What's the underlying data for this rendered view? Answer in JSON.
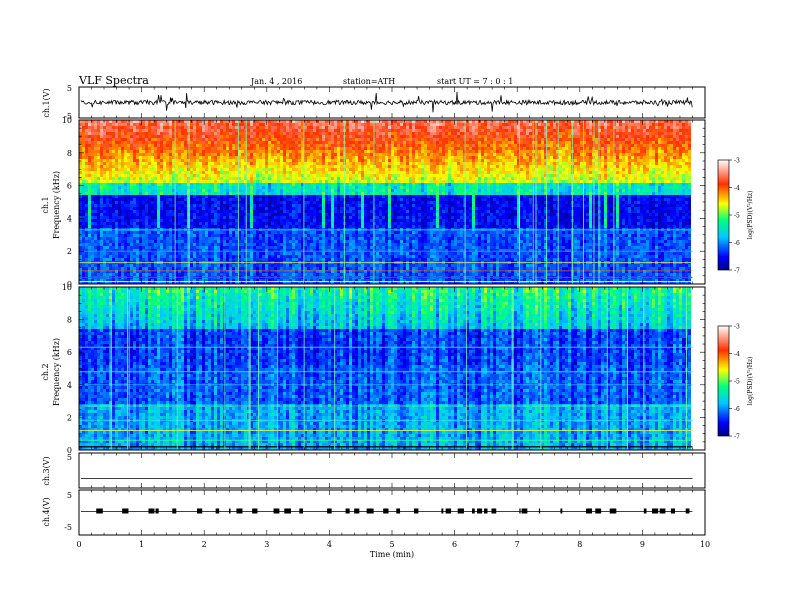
{
  "header": {
    "title": "VLF Spectra",
    "date": "Jan. 4 , 2016",
    "station": "station=ATH",
    "start": "start UT = 7 : 0 : 1"
  },
  "chart_data": [
    {
      "type": "line",
      "panel": "ch1-waveform",
      "ylabel": "ch.1(V)",
      "ylim": [
        -5,
        5
      ],
      "yticks": [
        "5",
        "-5"
      ],
      "xlim": [
        0,
        10
      ],
      "level": 0,
      "x_end": 9.8
    },
    {
      "type": "heatmap",
      "panel": "ch1-spectrogram",
      "ylabel": "ch.1",
      "ylabel2": "Frequency (kHz)",
      "ylim": [
        0,
        10
      ],
      "yticks": [
        "0",
        "2",
        "4",
        "6",
        "8",
        "10"
      ],
      "xlim": [
        0,
        10
      ],
      "x_end": 9.8,
      "colorbar": {
        "label": "log(PSD)(V²/Hz)",
        "ticks": [
          "-3",
          "-4",
          "-5",
          "-6",
          "-7"
        ],
        "range": [
          -7,
          -3
        ]
      }
    },
    {
      "type": "heatmap",
      "panel": "ch2-spectrogram",
      "ylabel": "ch.2",
      "ylabel2": "Frequency (kHz)",
      "ylim": [
        0,
        10
      ],
      "yticks": [
        "0",
        "2",
        "4",
        "6",
        "8",
        "10"
      ],
      "xlim": [
        0,
        10
      ],
      "x_end": 9.8,
      "colorbar": {
        "label": "log(PSD)(V²/Hz)",
        "ticks": [
          "-3",
          "-4",
          "-5",
          "-6",
          "-7"
        ],
        "range": [
          -7,
          -3
        ]
      }
    },
    {
      "type": "line",
      "panel": "ch3-waveform",
      "ylabel": "ch.3(V)",
      "ylim": [
        -5,
        5
      ],
      "yticks": [
        "5"
      ],
      "xlim": [
        0,
        10
      ],
      "level": 0,
      "x_end": 9.8
    },
    {
      "type": "line",
      "panel": "ch4-waveform",
      "ylabel": "ch.4(V)",
      "ylim": [
        -5,
        5
      ],
      "yticks": [
        "5",
        "-5"
      ],
      "xlim": [
        0,
        10
      ],
      "level": 0,
      "x_end": 9.8,
      "xlabel": "Time (min)",
      "xticks": [
        "0",
        "1",
        "2",
        "3",
        "4",
        "5",
        "6",
        "7",
        "8",
        "9",
        "10"
      ]
    }
  ]
}
